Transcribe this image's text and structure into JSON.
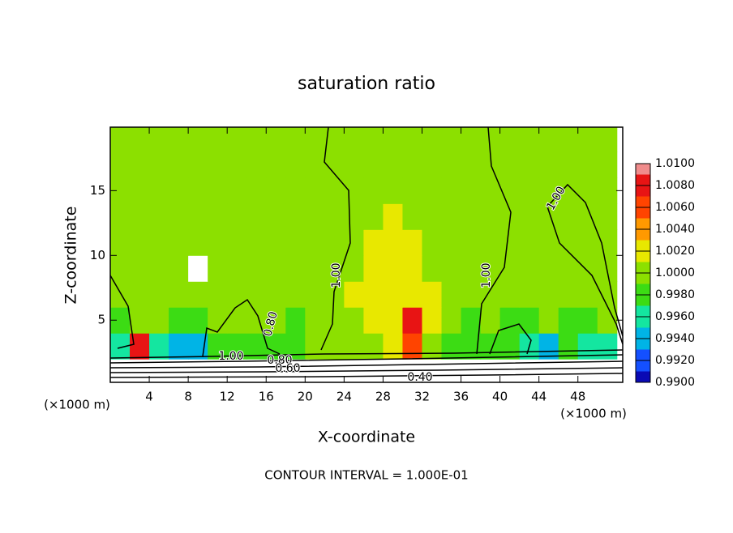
{
  "chart_data": {
    "type": "heatmap",
    "title": "saturation ratio",
    "x_label": "X-coordinate",
    "y_label": "Z-coordinate",
    "x_unit": "(×1000 m)",
    "footer": "CONTOUR INTERVAL = 1.000E-01",
    "xlim": [
      0,
      52.6
    ],
    "ylim": [
      0.2,
      19.9
    ],
    "xticks": [
      4,
      8,
      12,
      16,
      20,
      24,
      28,
      32,
      36,
      40,
      44,
      48
    ],
    "yticks": [
      5,
      10,
      15
    ],
    "x": [
      1,
      3,
      5,
      7,
      9,
      11,
      13,
      15,
      17,
      19,
      21,
      23,
      25,
      27,
      29,
      31,
      33,
      35,
      37,
      39,
      41,
      43,
      45,
      47,
      49,
      51
    ],
    "y": [
      1,
      3,
      5,
      7,
      9,
      11,
      13,
      15,
      17,
      19
    ],
    "z": [
      [
        0.6,
        0.6,
        0.6,
        0.6,
        0.6,
        0.6,
        0.6,
        0.6,
        0.6,
        0.6,
        0.6,
        0.6,
        0.6,
        0.6,
        0.6,
        0.6,
        0.6,
        0.6,
        0.6,
        0.6,
        0.6,
        0.6,
        0.6,
        0.6,
        0.6,
        0.6
      ],
      [
        0.995,
        1.008,
        0.996,
        0.994,
        0.994,
        0.998,
        0.998,
        0.998,
        0.998,
        0.998,
        1.0,
        1.0,
        1.0,
        1.0,
        1.002,
        1.006,
        1.0,
        0.997,
        0.997,
        0.998,
        0.997,
        0.996,
        0.994,
        0.997,
        0.996,
        0.996
      ],
      [
        0.998,
        1.0,
        1.0,
        0.998,
        0.998,
        1.0,
        1.0,
        1.0,
        1.0,
        0.998,
        1.0,
        1.0,
        1.0,
        1.002,
        1.002,
        1.008,
        1.002,
        1.0,
        0.998,
        1.0,
        0.998,
        0.998,
        1.0,
        0.998,
        0.998,
        1.0
      ],
      [
        1.0,
        1.0,
        1.0,
        1.0,
        1.0,
        1.0,
        1.0,
        1.0,
        1.0,
        1.0,
        1.0,
        1.0,
        1.002,
        1.002,
        1.002,
        1.002,
        1.002,
        1.0,
        1.0,
        1.0,
        1.0,
        1.0,
        1.0,
        1.0,
        1.0,
        1.0
      ],
      [
        1.0,
        1.0,
        1.0,
        1.0,
        0.8,
        1.0,
        1.0,
        1.0,
        1.0,
        1.0,
        1.0,
        1.0,
        1.0,
        1.002,
        1.002,
        1.002,
        1.0,
        1.0,
        1.0,
        1.0,
        1.0,
        1.0,
        1.0,
        1.0,
        1.0,
        1.0
      ],
      [
        1.0,
        1.0,
        1.0,
        1.0,
        1.0,
        1.0,
        1.0,
        1.0,
        1.0,
        1.0,
        1.0,
        1.0,
        1.0,
        1.002,
        1.002,
        1.002,
        1.0,
        1.0,
        1.0,
        1.0,
        1.0,
        1.0,
        1.0,
        1.0,
        1.0,
        1.0
      ],
      [
        1.0,
        1.0,
        1.0,
        1.0,
        1.0,
        1.0,
        1.0,
        1.0,
        1.0,
        1.0,
        1.0,
        1.0,
        1.0,
        1.0,
        1.002,
        1.0,
        1.0,
        1.0,
        1.0,
        1.0,
        1.0,
        1.0,
        1.0,
        1.0,
        1.0,
        1.0
      ],
      [
        1.0,
        1.0,
        1.0,
        1.0,
        1.0,
        1.0,
        1.0,
        1.0,
        1.0,
        1.0,
        1.0,
        1.0,
        1.0,
        1.0,
        1.0,
        1.0,
        1.0,
        1.0,
        1.0,
        1.0,
        1.0,
        1.0,
        1.0,
        1.0,
        1.0,
        1.0
      ],
      [
        1.0,
        1.0,
        1.0,
        1.0,
        1.0,
        1.0,
        1.0,
        1.0,
        1.0,
        1.0,
        1.0,
        1.0,
        1.0,
        1.0,
        1.0,
        1.0,
        1.0,
        1.0,
        1.0,
        1.0,
        1.0,
        1.0,
        1.0,
        1.0,
        1.0,
        1.0
      ],
      [
        1.0,
        1.0,
        1.0,
        1.0,
        1.0,
        1.0,
        1.0,
        1.0,
        1.0,
        1.0,
        1.0,
        1.0,
        1.0,
        1.0,
        1.0,
        1.0,
        1.0,
        1.0,
        1.0,
        1.0,
        1.0,
        1.0,
        1.0,
        1.0,
        1.0,
        1.0
      ]
    ],
    "colorbar": {
      "ticks": [
        {
          "value": 1.01,
          "label": "1.0100"
        },
        {
          "value": 1.008,
          "label": "1.0080"
        },
        {
          "value": 1.006,
          "label": "1.0060"
        },
        {
          "value": 1.004,
          "label": "1.0040"
        },
        {
          "value": 1.002,
          "label": "1.0020"
        },
        {
          "value": 1.0,
          "label": "1.0000"
        },
        {
          "value": 0.998,
          "label": "0.9980"
        },
        {
          "value": 0.996,
          "label": "0.9960"
        },
        {
          "value": 0.994,
          "label": "0.9940"
        },
        {
          "value": 0.992,
          "label": "0.9920"
        },
        {
          "value": 0.99,
          "label": "0.9900"
        }
      ],
      "colors": [
        "#f08c8c",
        "#e81414",
        "#ff4400",
        "#ff9900",
        "#e8e800",
        "#8ce000",
        "#3cdc14",
        "#14e6a0",
        "#00b4e6",
        "#1450ff",
        "#0a0ab4"
      ],
      "below_color": "#ffffff"
    },
    "contour_labels": [
      "1.00",
      "1.00",
      "1.00",
      "1.00",
      "0.80",
      "0.80",
      "0.60",
      "0.40"
    ]
  }
}
